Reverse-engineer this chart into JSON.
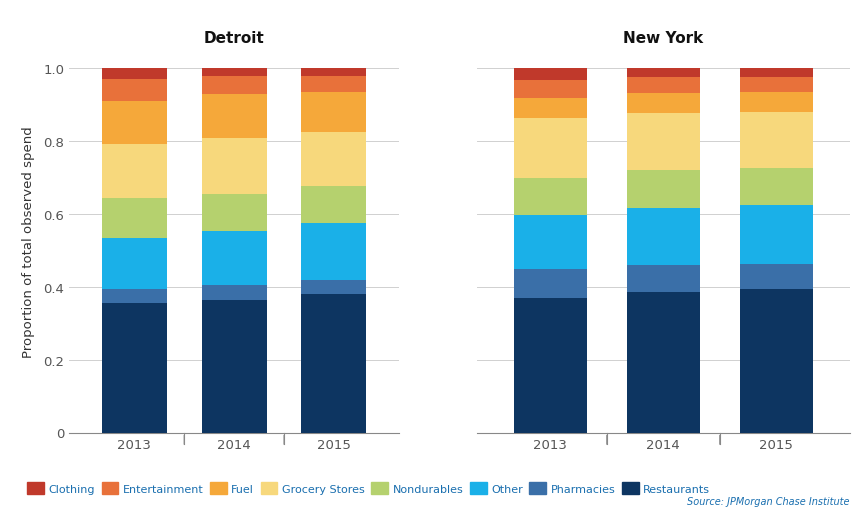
{
  "categories": [
    "2013",
    "2014",
    "2015"
  ],
  "layers": [
    "Restaurants",
    "Pharmacies",
    "Other",
    "Nondurables",
    "Grocery Stores",
    "Fuel",
    "Entertainment",
    "Clothing"
  ],
  "colors": [
    "#0d3561",
    "#3a6fa8",
    "#1ab0e8",
    "#b5d16e",
    "#f7d87c",
    "#f5a83a",
    "#e8713a",
    "#c0392b"
  ],
  "detroit": {
    "2013": [
      0.355,
      0.038,
      0.14,
      0.112,
      0.148,
      0.118,
      0.06,
      0.029
    ],
    "2014": [
      0.365,
      0.04,
      0.148,
      0.103,
      0.152,
      0.12,
      0.05,
      0.022
    ],
    "2015": [
      0.38,
      0.038,
      0.158,
      0.1,
      0.148,
      0.112,
      0.044,
      0.02
    ]
  },
  "new_york": {
    "2013": [
      0.37,
      0.078,
      0.15,
      0.1,
      0.165,
      0.055,
      0.05,
      0.032
    ],
    "2014": [
      0.385,
      0.075,
      0.155,
      0.105,
      0.158,
      0.053,
      0.045,
      0.024
    ],
    "2015": [
      0.395,
      0.068,
      0.162,
      0.1,
      0.155,
      0.055,
      0.042,
      0.023
    ]
  },
  "title_detroit": "Detroit",
  "title_newyork": "New York",
  "ylabel": "Proportion of total observed spend",
  "source": "Source: JPMorgan Chase Institute",
  "legend_labels": [
    "Clothing",
    "Entertainment",
    "Fuel",
    "Grocery Stores",
    "Nondurables",
    "Other",
    "Pharmacies",
    "Restaurants"
  ],
  "legend_colors": [
    "#c0392b",
    "#e8713a",
    "#f5a83a",
    "#f7d87c",
    "#b5d16e",
    "#1ab0e8",
    "#3a6fa8",
    "#0d3561"
  ],
  "legend_text_color": "#1a6faf",
  "source_color": "#1a6faf",
  "background": "#ffffff",
  "grid_color": "#d0d0d0",
  "spine_color": "#888888",
  "tick_color": "#555555"
}
